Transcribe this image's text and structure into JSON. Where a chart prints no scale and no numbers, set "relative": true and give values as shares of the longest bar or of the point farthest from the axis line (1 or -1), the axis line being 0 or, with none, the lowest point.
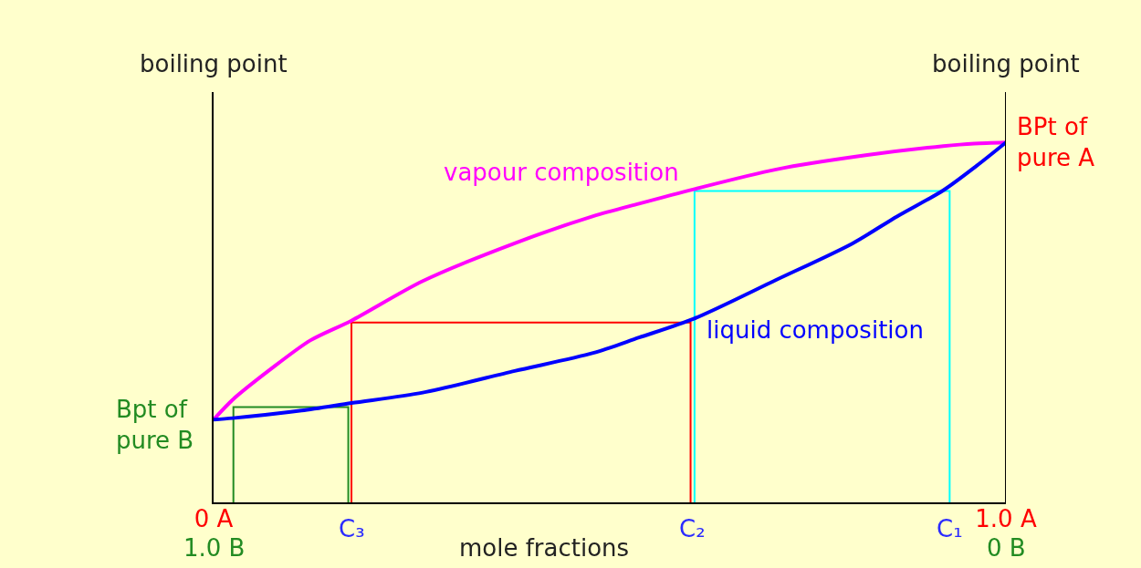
{
  "chart_data": {
    "type": "line",
    "relative": true,
    "grid": false,
    "legend": false,
    "xlabel": "mole fractions",
    "ylabel": "boiling point",
    "y2label": "boiling point",
    "xlim": [
      0,
      1
    ],
    "xticks": [
      {
        "value": 0,
        "label": "0 A"
      },
      {
        "value": 1,
        "label": "1.0 A"
      }
    ],
    "x2lim": [
      1,
      0
    ],
    "x2ticks": [
      {
        "value": 1,
        "label": "1.0 B"
      },
      {
        "value": 0,
        "label": "0 B"
      }
    ],
    "annotations": [
      {
        "text": "BPt of\npure A",
        "x": 1,
        "y": 1
      },
      {
        "text": "Bpt of\npure B",
        "x": 0,
        "y": 0.23
      },
      {
        "text": "C₃",
        "x": 0.174,
        "y": 0
      },
      {
        "text": "C₂",
        "x": 0.604,
        "y": 0
      },
      {
        "text": "C₁",
        "x": 0.929,
        "y": 0
      }
    ],
    "series": [
      {
        "color": "#ff0000",
        "x": [
          0.174,
          0.174,
          0.602,
          0.602
        ],
        "values": [
          0,
          0.5,
          0.5,
          0
        ]
      },
      {
        "color": "#00ffff",
        "x": [
          0.607,
          0.607,
          0.929,
          0.929
        ],
        "values": [
          0,
          0.865,
          0.865,
          0
        ]
      },
      {
        "color": "#228b22",
        "x": [
          0.025,
          0.025,
          0.17,
          0.17
        ],
        "values": [
          0,
          0.265,
          0.265,
          0
        ]
      },
      {
        "name": "vapour composition",
        "color": "#ff00ff",
        "x": [
          0,
          0.024,
          0.072,
          0.122,
          0.174,
          0.264,
          0.38,
          0.479,
          0.537,
          0.606,
          0.71,
          0.825,
          0.921,
          0.96,
          1
        ],
        "values": [
          0.23,
          0.285,
          0.37,
          0.45,
          0.505,
          0.615,
          0.72,
          0.795,
          0.83,
          0.87,
          0.925,
          0.965,
          0.99,
          0.997,
          1
        ]
      },
      {
        "name": "liquid composition",
        "color": "#0000ff",
        "x": [
          0,
          0.024,
          0.111,
          0.174,
          0.264,
          0.38,
          0.479,
          0.537,
          0.606,
          0.71,
          0.806,
          0.863,
          0.921,
          0.963,
          1
        ],
        "values": [
          0.23,
          0.234,
          0.255,
          0.276,
          0.305,
          0.365,
          0.415,
          0.458,
          0.51,
          0.618,
          0.719,
          0.795,
          0.867,
          0.935,
          1
        ]
      }
    ]
  }
}
